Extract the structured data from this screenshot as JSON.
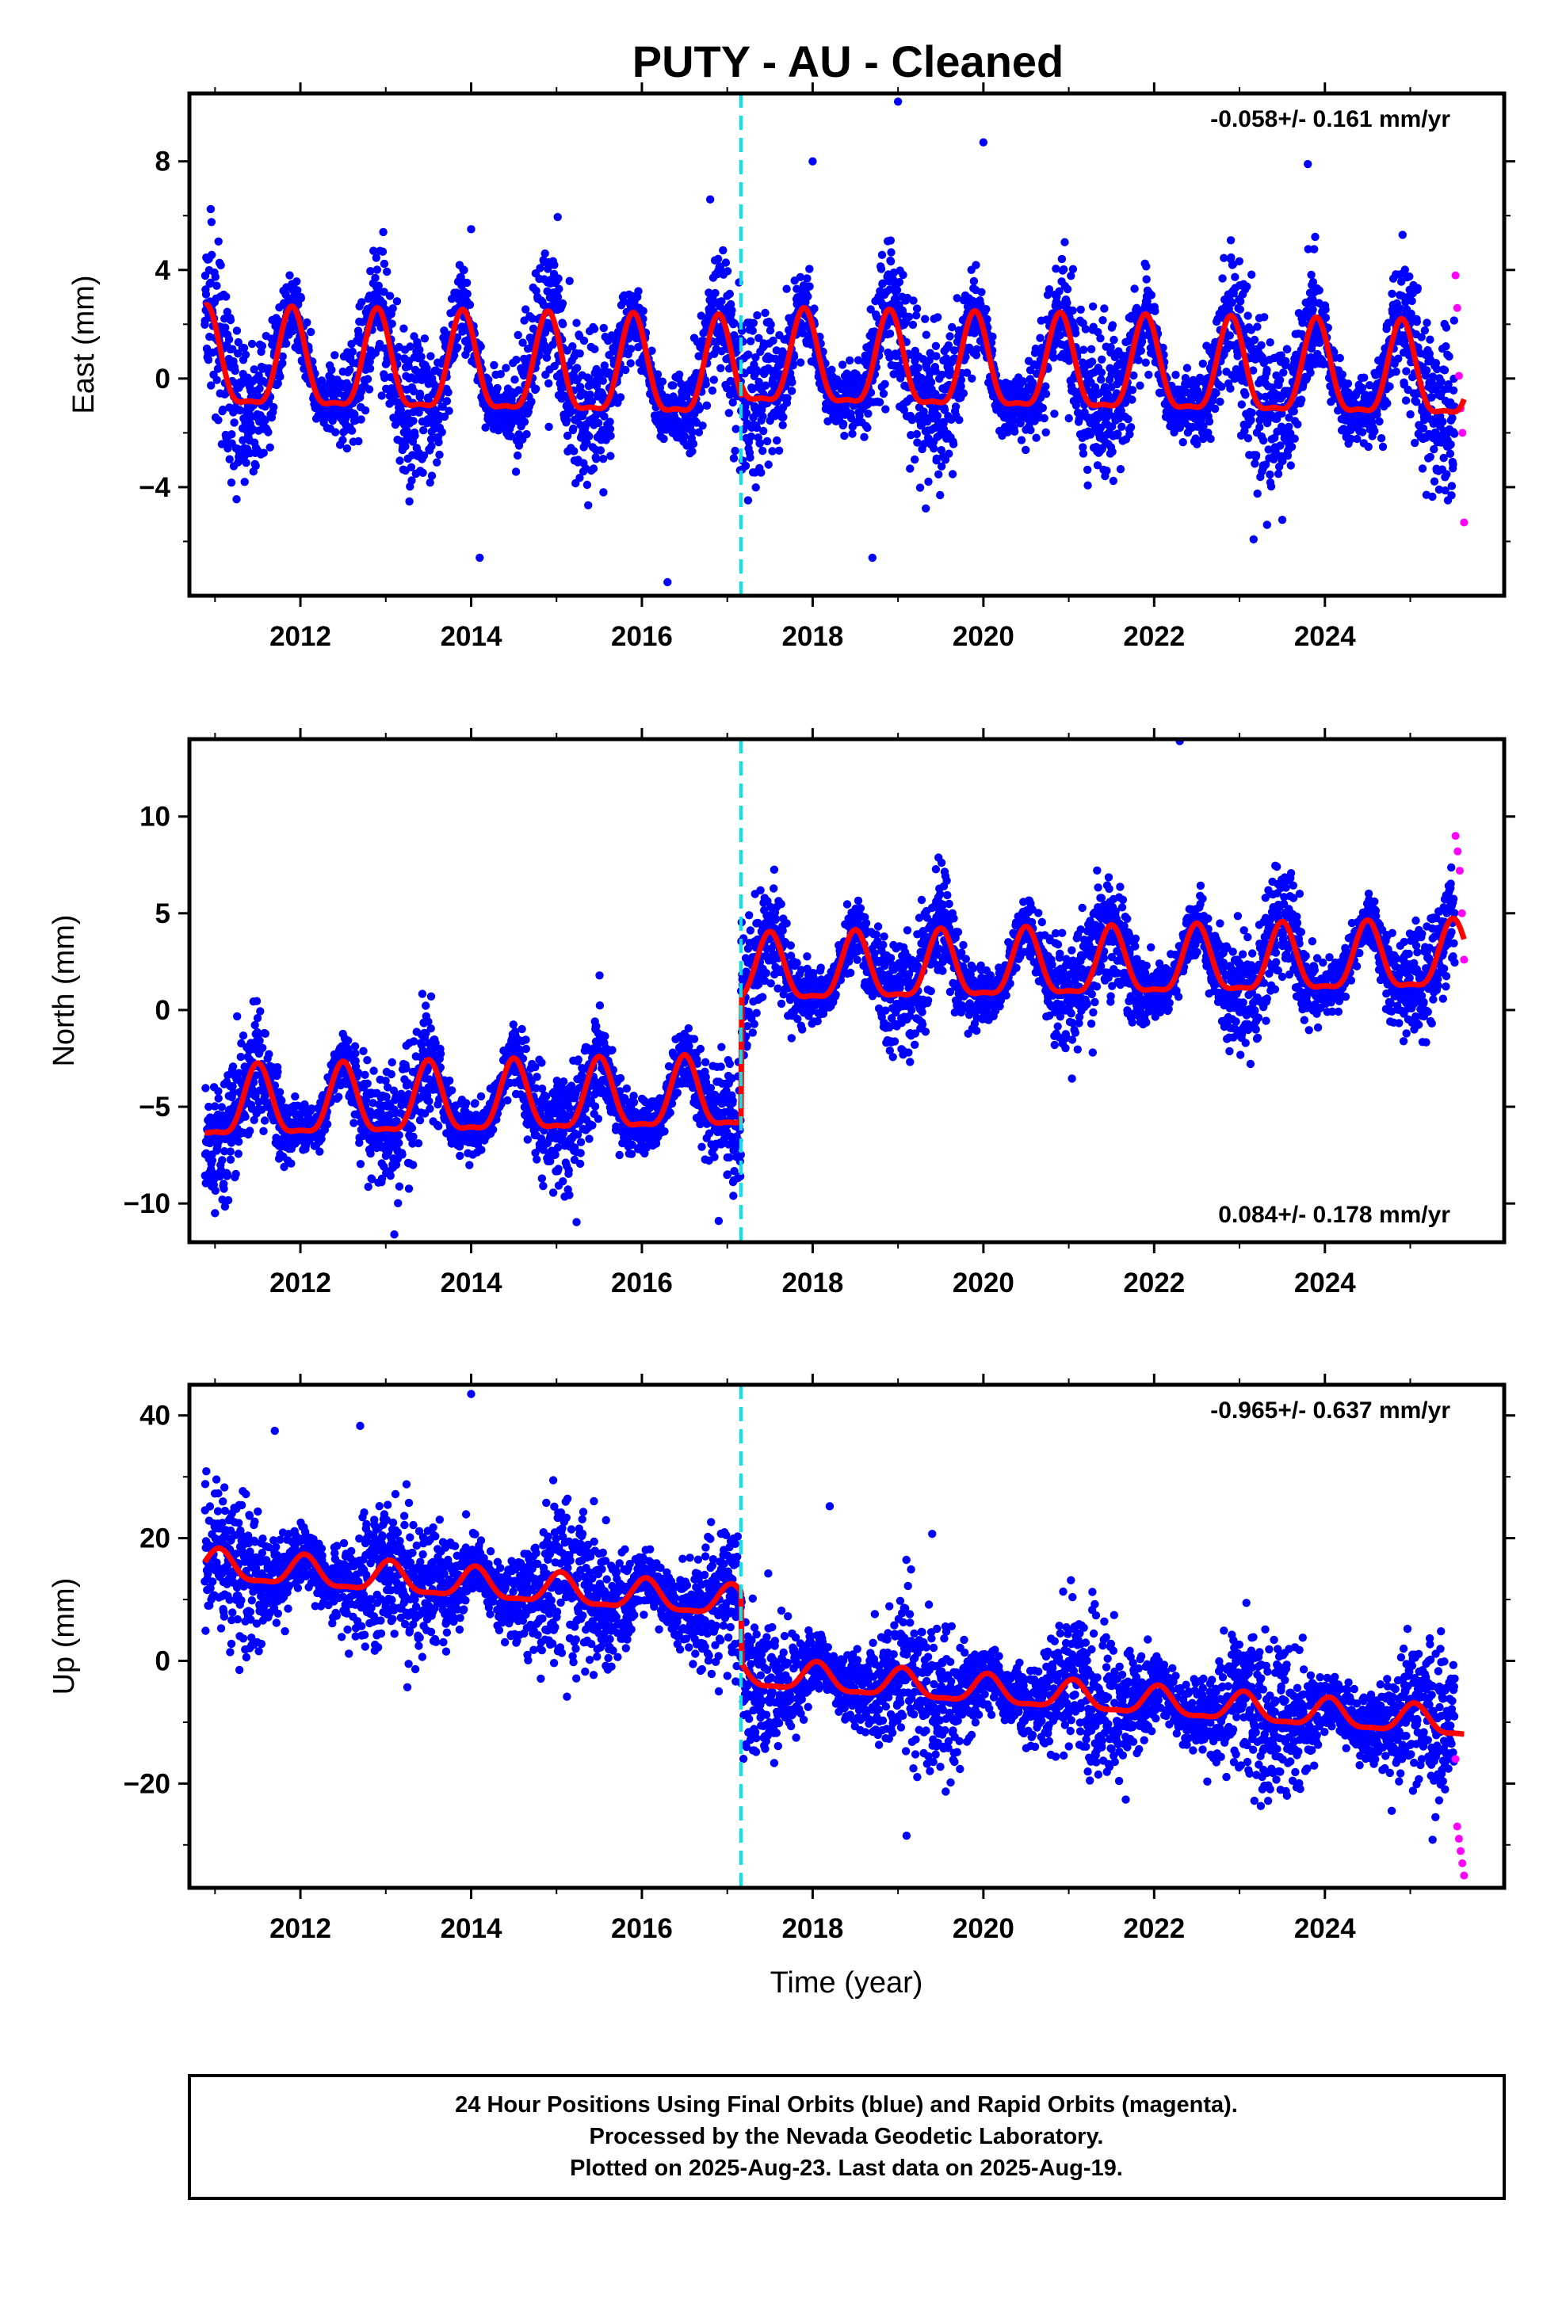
{
  "figure_title": "PUTY  - AU - Cleaned",
  "colors": {
    "final_orbits": "#0000ff",
    "rapid_orbits": "#ff00ff",
    "model": "#ff0000",
    "event_line": "#00e5ee"
  },
  "chart_data": [
    {
      "type": "scatter",
      "ylabel": "East (mm)",
      "xlabel": "",
      "xlim": [
        2010.7,
        2026.1
      ],
      "ylim": [
        -8,
        10.5
      ],
      "x_ticks": [
        "2012",
        "2014",
        "2016",
        "2018",
        "2020",
        "2022",
        "2024"
      ],
      "y_ticks": [
        "−4",
        "0",
        "4",
        "8"
      ],
      "rate_label": "-0.058+/- 0.161 mm/yr",
      "event_line_year": 2017.16,
      "model": {
        "amplitude_before": 2.2,
        "amplitude_after": 2.1,
        "peak_phase_year": 0.9,
        "offset_before": 0,
        "offset_after": 0.4,
        "noise_sd": 1.3,
        "trend_mm_per_yr": -0.058
      },
      "series": [
        {
          "name": "Final Orbits",
          "range": [
            2010.88,
            2025.52
          ]
        },
        {
          "name": "Rapid Orbits",
          "range": [
            2025.53,
            2025.63
          ],
          "values": [
            3.8,
            2.6,
            0.1,
            -1.1,
            -2.0,
            -5.3
          ]
        }
      ],
      "outliers": [
        [
          2019.0,
          10.2
        ],
        [
          2018.0,
          8.0
        ],
        [
          2020.0,
          8.7
        ],
        [
          2016.8,
          6.6
        ],
        [
          2014.0,
          5.5
        ],
        [
          2023.8,
          7.9
        ],
        [
          2016.3,
          -7.5
        ],
        [
          2018.7,
          -6.6
        ],
        [
          2014.1,
          -6.6
        ]
      ]
    },
    {
      "type": "scatter",
      "ylabel": "North (mm)",
      "xlabel": "",
      "xlim": [
        2010.7,
        2026.1
      ],
      "ylim": [
        -12,
        14
      ],
      "x_ticks": [
        "2012",
        "2014",
        "2016",
        "2018",
        "2020",
        "2022",
        "2024"
      ],
      "y_ticks": [
        "−10",
        "−5",
        "0",
        "5",
        "10"
      ],
      "rate_label": "0.084+/- 0.178 mm/yr",
      "event_line_year": 2017.16,
      "model": {
        "amplitude_before": 2.2,
        "amplitude_after": 2.1,
        "peak_phase_year": 0.5,
        "offset_before": -4.5,
        "offset_after": 1.9,
        "noise_sd": 1.4,
        "trend_mm_per_yr": 0.084
      },
      "series": [
        {
          "name": "Final Orbits",
          "range": [
            2010.88,
            2025.52
          ]
        },
        {
          "name": "Rapid Orbits",
          "range": [
            2025.53,
            2025.63
          ],
          "values": [
            9.0,
            8.2,
            7.2,
            5.0,
            2.6
          ]
        }
      ],
      "outliers": [
        [
          2022.3,
          13.9
        ],
        [
          2013.1,
          -11.6
        ],
        [
          2011.0,
          -10.5
        ],
        [
          2016.9,
          -10.9
        ]
      ]
    },
    {
      "type": "scatter",
      "ylabel": "Up (mm)",
      "xlabel": "Time (year)",
      "xlim": [
        2010.7,
        2026.1
      ],
      "ylim": [
        -37,
        45
      ],
      "x_ticks": [
        "2012",
        "2014",
        "2016",
        "2018",
        "2020",
        "2022",
        "2024"
      ],
      "y_ticks": [
        "−20",
        "0",
        "20",
        "40"
      ],
      "rate_label": "-0.965+/- 0.637 mm/yr",
      "event_line_year": 2017.16,
      "model": {
        "amplitude_before": 3.0,
        "amplitude_after": 2.8,
        "peak_phase_year": 0.05,
        "offset_before": 8.5,
        "offset_after": -3.0,
        "noise_sd": 5.5,
        "trend_mm_per_yr": -0.965
      },
      "series": [
        {
          "name": "Final Orbits",
          "range": [
            2010.88,
            2025.52
          ]
        },
        {
          "name": "Rapid Orbits",
          "range": [
            2025.53,
            2025.63
          ],
          "values": [
            -16,
            -27,
            -29,
            -31,
            -33,
            -35
          ]
        }
      ],
      "outliers": [
        [
          2014.0,
          43.5
        ],
        [
          2012.7,
          38.3
        ],
        [
          2011.7,
          37.5
        ],
        [
          2019.1,
          -28.5
        ],
        [
          2018.2,
          25.2
        ],
        [
          2019.4,
          20.7
        ]
      ]
    }
  ],
  "footer": {
    "line1": "24 Hour Positions Using Final Orbits (blue) and Rapid Orbits (magenta).",
    "line2": "Processed by the Nevada Geodetic Laboratory.",
    "line3": "Plotted on 2025-Aug-23. Last data on 2025-Aug-19."
  }
}
